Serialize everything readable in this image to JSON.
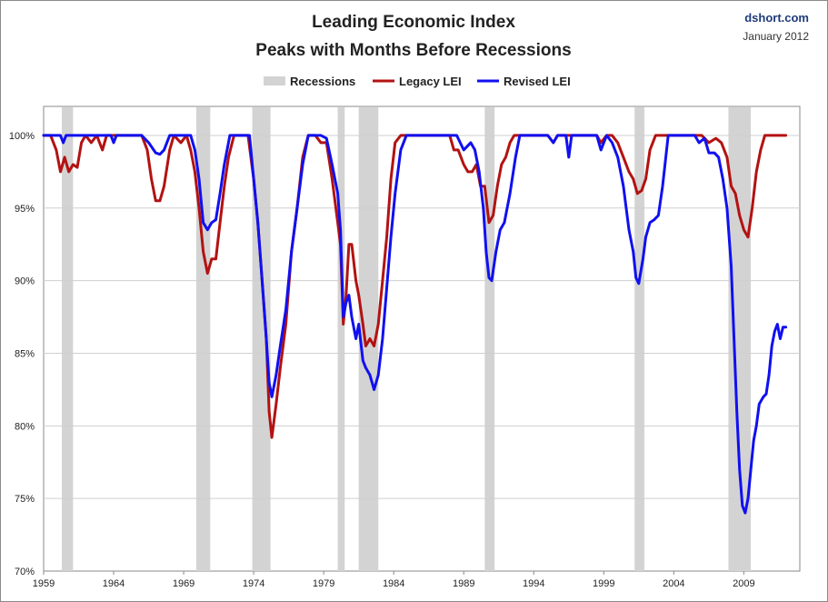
{
  "chart_data": {
    "type": "line",
    "title": "Leading Economic Index",
    "subtitle": "Peaks with Months Before Recessions",
    "source": "dshort.com",
    "date": "January 2012",
    "xlim": [
      1959,
      2013
    ],
    "ylim": [
      70,
      102
    ],
    "xticks": [
      "1959",
      "1964",
      "1969",
      "1974",
      "1979",
      "1984",
      "1989",
      "1994",
      "1999",
      "2004",
      "2009"
    ],
    "yticks": [
      "100%",
      "95%",
      "90%",
      "85%",
      "80%",
      "75%",
      "70%"
    ],
    "legend": [
      "Recessions",
      "Legacy LEI",
      "Revised LEI"
    ],
    "colors": {
      "recession": "#d3d3d3",
      "legacy": "#b31212",
      "revised": "#1010f0",
      "grid": "#cfcfcf"
    },
    "recessions": [
      [
        1960.3,
        1961.1
      ],
      [
        1969.9,
        1970.9
      ],
      [
        1973.9,
        1975.2
      ],
      [
        1980.0,
        1980.5
      ],
      [
        1981.5,
        1982.9
      ],
      [
        1990.5,
        1991.2
      ],
      [
        2001.2,
        2001.9
      ],
      [
        2007.9,
        2009.5
      ]
    ],
    "series": [
      {
        "name": "Legacy LEI",
        "points": [
          [
            1959.0,
            100
          ],
          [
            1959.5,
            100
          ],
          [
            1959.9,
            99
          ],
          [
            1960.2,
            97.5
          ],
          [
            1960.5,
            98.5
          ],
          [
            1960.8,
            97.5
          ],
          [
            1961.1,
            98
          ],
          [
            1961.4,
            97.8
          ],
          [
            1961.7,
            99.5
          ],
          [
            1962.0,
            100
          ],
          [
            1962.4,
            99.5
          ],
          [
            1962.8,
            100
          ],
          [
            1963.2,
            99
          ],
          [
            1963.5,
            100
          ],
          [
            1966.0,
            100
          ],
          [
            1966.4,
            99
          ],
          [
            1966.7,
            97
          ],
          [
            1967.0,
            95.5
          ],
          [
            1967.3,
            95.5
          ],
          [
            1967.6,
            96.5
          ],
          [
            1968.0,
            99
          ],
          [
            1968.3,
            100
          ],
          [
            1968.8,
            99.5
          ],
          [
            1969.2,
            100
          ],
          [
            1969.5,
            99
          ],
          [
            1969.8,
            97.5
          ],
          [
            1970.1,
            95
          ],
          [
            1970.4,
            92
          ],
          [
            1970.7,
            90.5
          ],
          [
            1971.0,
            91.5
          ],
          [
            1971.3,
            91.5
          ],
          [
            1971.6,
            94
          ],
          [
            1971.9,
            96.5
          ],
          [
            1972.2,
            98.5
          ],
          [
            1972.6,
            100
          ],
          [
            1973.6,
            100
          ],
          [
            1974.0,
            97
          ],
          [
            1974.3,
            94
          ],
          [
            1974.6,
            90
          ],
          [
            1974.9,
            86
          ],
          [
            1975.1,
            81
          ],
          [
            1975.3,
            79.2
          ],
          [
            1975.6,
            81.5
          ],
          [
            1975.9,
            84
          ],
          [
            1976.3,
            87
          ],
          [
            1976.7,
            92
          ],
          [
            1977.1,
            95
          ],
          [
            1977.5,
            98.5
          ],
          [
            1977.9,
            100
          ],
          [
            1978.4,
            100
          ],
          [
            1978.8,
            99.5
          ],
          [
            1979.2,
            99.5
          ],
          [
            1979.6,
            97
          ],
          [
            1980.0,
            94
          ],
          [
            1980.2,
            92.5
          ],
          [
            1980.4,
            87
          ],
          [
            1980.6,
            89
          ],
          [
            1980.8,
            92.5
          ],
          [
            1981.0,
            92.5
          ],
          [
            1981.3,
            90
          ],
          [
            1981.5,
            89
          ],
          [
            1981.8,
            87
          ],
          [
            1982.0,
            85.5
          ],
          [
            1982.3,
            86
          ],
          [
            1982.6,
            85.5
          ],
          [
            1982.9,
            87
          ],
          [
            1983.2,
            90
          ],
          [
            1983.5,
            93
          ],
          [
            1983.8,
            97
          ],
          [
            1984.1,
            99.5
          ],
          [
            1984.5,
            100
          ],
          [
            1988.0,
            100
          ],
          [
            1988.3,
            99
          ],
          [
            1988.6,
            99
          ],
          [
            1989.0,
            98
          ],
          [
            1989.3,
            97.5
          ],
          [
            1989.6,
            97.5
          ],
          [
            1989.9,
            98
          ],
          [
            1990.2,
            96.5
          ],
          [
            1990.5,
            96.5
          ],
          [
            1990.8,
            94
          ],
          [
            1991.1,
            94.5
          ],
          [
            1991.4,
            96.5
          ],
          [
            1991.7,
            98
          ],
          [
            1992.0,
            98.5
          ],
          [
            1992.3,
            99.5
          ],
          [
            1992.6,
            100
          ],
          [
            1995.0,
            100
          ],
          [
            1995.4,
            99.5
          ],
          [
            1995.7,
            100
          ],
          [
            1996.3,
            100
          ],
          [
            1998.5,
            100
          ],
          [
            1998.8,
            99.5
          ],
          [
            1999.2,
            100
          ],
          [
            1999.6,
            100
          ],
          [
            2000.0,
            99.5
          ],
          [
            2000.4,
            98.5
          ],
          [
            2000.8,
            97.5
          ],
          [
            2001.1,
            97
          ],
          [
            2001.4,
            96
          ],
          [
            2001.7,
            96.2
          ],
          [
            2002.0,
            97
          ],
          [
            2002.3,
            99
          ],
          [
            2002.7,
            100
          ],
          [
            2006.0,
            100
          ],
          [
            2006.5,
            99.5
          ],
          [
            2007.0,
            99.8
          ],
          [
            2007.4,
            99.5
          ],
          [
            2007.8,
            98.5
          ],
          [
            2008.1,
            96.5
          ],
          [
            2008.4,
            96
          ],
          [
            2008.7,
            94.5
          ],
          [
            2009.0,
            93.5
          ],
          [
            2009.3,
            93
          ],
          [
            2009.6,
            95
          ],
          [
            2009.9,
            97.5
          ],
          [
            2010.2,
            99
          ],
          [
            2010.5,
            100
          ],
          [
            2012.0,
            100
          ]
        ]
      },
      {
        "name": "Revised LEI",
        "points": [
          [
            1959.0,
            100
          ],
          [
            1960.2,
            100
          ],
          [
            1960.4,
            99.5
          ],
          [
            1960.6,
            100
          ],
          [
            1963.8,
            100
          ],
          [
            1964.0,
            99.5
          ],
          [
            1964.2,
            100
          ],
          [
            1966.0,
            100
          ],
          [
            1966.5,
            99.5
          ],
          [
            1967.0,
            98.8
          ],
          [
            1967.3,
            98.7
          ],
          [
            1967.6,
            99
          ],
          [
            1968.0,
            100
          ],
          [
            1969.5,
            100
          ],
          [
            1969.8,
            99
          ],
          [
            1970.1,
            97
          ],
          [
            1970.4,
            94
          ],
          [
            1970.7,
            93.5
          ],
          [
            1971.0,
            94
          ],
          [
            1971.3,
            94.2
          ],
          [
            1971.6,
            96
          ],
          [
            1971.9,
            98
          ],
          [
            1972.3,
            100
          ],
          [
            1973.7,
            100
          ],
          [
            1974.0,
            97
          ],
          [
            1974.3,
            94
          ],
          [
            1974.6,
            90
          ],
          [
            1974.9,
            86
          ],
          [
            1975.1,
            83
          ],
          [
            1975.3,
            82
          ],
          [
            1975.6,
            83.5
          ],
          [
            1975.9,
            85.5
          ],
          [
            1976.3,
            88
          ],
          [
            1976.7,
            92
          ],
          [
            1977.1,
            95
          ],
          [
            1977.5,
            98
          ],
          [
            1977.9,
            100
          ],
          [
            1978.4,
            100
          ],
          [
            1978.8,
            100
          ],
          [
            1979.2,
            99.8
          ],
          [
            1979.6,
            98
          ],
          [
            1980.0,
            96
          ],
          [
            1980.2,
            93.5
          ],
          [
            1980.4,
            87.5
          ],
          [
            1980.6,
            88.5
          ],
          [
            1980.8,
            89
          ],
          [
            1981.0,
            87.5
          ],
          [
            1981.3,
            86
          ],
          [
            1981.5,
            87
          ],
          [
            1981.8,
            84.5
          ],
          [
            1982.0,
            84
          ],
          [
            1982.3,
            83.5
          ],
          [
            1982.6,
            82.5
          ],
          [
            1982.9,
            83.5
          ],
          [
            1983.2,
            86
          ],
          [
            1983.5,
            89.5
          ],
          [
            1983.8,
            93
          ],
          [
            1984.1,
            96
          ],
          [
            1984.5,
            99
          ],
          [
            1984.9,
            100
          ],
          [
            1988.0,
            100
          ],
          [
            1988.5,
            100
          ],
          [
            1989.0,
            99
          ],
          [
            1989.5,
            99.5
          ],
          [
            1989.8,
            99
          ],
          [
            1990.1,
            97.5
          ],
          [
            1990.4,
            95
          ],
          [
            1990.6,
            92
          ],
          [
            1990.8,
            90.2
          ],
          [
            1991.0,
            90
          ],
          [
            1991.3,
            92
          ],
          [
            1991.6,
            93.5
          ],
          [
            1991.9,
            94
          ],
          [
            1992.3,
            96
          ],
          [
            1992.7,
            98.5
          ],
          [
            1993.0,
            100
          ],
          [
            1995.0,
            100
          ],
          [
            1995.4,
            99.5
          ],
          [
            1995.7,
            100
          ],
          [
            1996.3,
            100
          ],
          [
            1996.5,
            98.5
          ],
          [
            1996.7,
            100
          ],
          [
            1998.5,
            100
          ],
          [
            1998.8,
            99
          ],
          [
            1999.2,
            100
          ],
          [
            1999.6,
            99.5
          ],
          [
            2000.0,
            98.5
          ],
          [
            2000.4,
            96.5
          ],
          [
            2000.8,
            93.5
          ],
          [
            2001.1,
            92
          ],
          [
            2001.3,
            90.2
          ],
          [
            2001.5,
            89.8
          ],
          [
            2001.8,
            91.5
          ],
          [
            2002.0,
            93
          ],
          [
            2002.3,
            94
          ],
          [
            2002.6,
            94.2
          ],
          [
            2002.9,
            94.5
          ],
          [
            2003.2,
            96.5
          ],
          [
            2003.6,
            100
          ],
          [
            2005.5,
            100
          ],
          [
            2005.8,
            99.5
          ],
          [
            2006.2,
            99.8
          ],
          [
            2006.5,
            98.8
          ],
          [
            2006.9,
            98.8
          ],
          [
            2007.2,
            98.5
          ],
          [
            2007.5,
            97
          ],
          [
            2007.8,
            95
          ],
          [
            2008.1,
            91
          ],
          [
            2008.3,
            86
          ],
          [
            2008.5,
            81
          ],
          [
            2008.7,
            77
          ],
          [
            2008.9,
            74.5
          ],
          [
            2009.1,
            74
          ],
          [
            2009.3,
            75
          ],
          [
            2009.5,
            77
          ],
          [
            2009.7,
            79
          ],
          [
            2009.9,
            80
          ],
          [
            2010.1,
            81.5
          ],
          [
            2010.4,
            82
          ],
          [
            2010.6,
            82.2
          ],
          [
            2010.8,
            83.5
          ],
          [
            2011.0,
            85.5
          ],
          [
            2011.2,
            86.5
          ],
          [
            2011.4,
            87
          ],
          [
            2011.6,
            86
          ],
          [
            2011.8,
            86.8
          ],
          [
            2012.0,
            86.8
          ]
        ]
      }
    ]
  }
}
